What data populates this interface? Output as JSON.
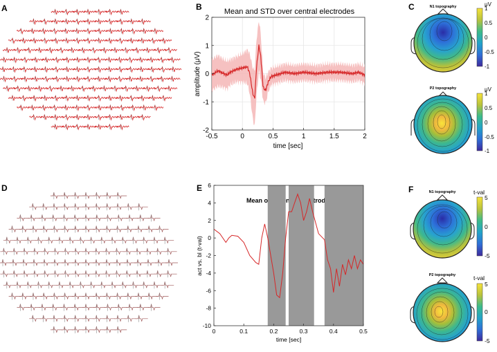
{
  "panels": {
    "A": {
      "letter": "A"
    },
    "B": {
      "letter": "B"
    },
    "C": {
      "letter": "C"
    },
    "D": {
      "letter": "D"
    },
    "E": {
      "letter": "E"
    },
    "F": {
      "letter": "F"
    }
  },
  "colors": {
    "trace": "#d62728",
    "band": "#f4b6b6",
    "sig_shade": "#999999",
    "grid": "#e6e6e6",
    "scalp_low": "#3a2fa0",
    "scalp_high": "#f5e23c"
  },
  "chart_data": [
    {
      "id": "B",
      "type": "line",
      "title": "Mean and STD over central electrodes",
      "xlabel": "time [sec]",
      "ylabel": "amplitude (μV)",
      "xlim": [
        -0.5,
        2
      ],
      "ylim": [
        -2,
        2
      ],
      "xticks": [
        -0.5,
        0,
        0.5,
        1,
        1.5,
        2
      ],
      "xtick_labels": [
        "-0.5",
        "0",
        "0.5",
        "1",
        "1.5",
        "2"
      ],
      "yticks": [
        -2,
        -1,
        0,
        1,
        2
      ],
      "ytick_labels": [
        "-2",
        "-1",
        "0",
        "1",
        "2"
      ],
      "grid": true,
      "series": [
        {
          "name": "mean",
          "x": [
            -0.5,
            -0.4,
            -0.3,
            -0.25,
            -0.2,
            -0.1,
            0,
            0.08,
            0.12,
            0.17,
            0.2,
            0.23,
            0.27,
            0.3,
            0.34,
            0.38,
            0.42,
            0.47,
            0.55,
            0.7,
            0.85,
            1.0,
            1.2,
            1.4,
            1.6,
            1.8,
            1.9,
            2.0
          ],
          "y": [
            -0.05,
            0.1,
            0.0,
            -0.05,
            0.05,
            0.15,
            0.2,
            0.25,
            0.0,
            -0.7,
            -0.9,
            0.2,
            1.0,
            0.6,
            -0.5,
            -0.6,
            -0.3,
            -0.1,
            -0.05,
            0.05,
            0.0,
            0.05,
            0.0,
            0.05,
            0.05,
            0.0,
            0.05,
            -0.05
          ]
        },
        {
          "name": "std",
          "values": [
            0.55,
            0.55,
            0.5,
            0.5,
            0.45,
            0.45,
            0.5,
            0.6,
            0.7,
            0.9,
            1.0,
            1.0,
            0.9,
            0.8,
            0.5,
            0.45,
            0.35,
            0.3,
            0.3,
            0.3,
            0.3,
            0.3,
            0.3,
            0.3,
            0.3,
            0.3,
            0.3,
            0.3
          ]
        }
      ]
    },
    {
      "id": "E",
      "type": "line",
      "title": "Mean over central electrodes",
      "xlabel": "time [sec]",
      "ylabel": "act vs. bl (t-val)",
      "xlim": [
        0,
        0.5
      ],
      "ylim": [
        -10,
        6
      ],
      "xticks": [
        0,
        0.1,
        0.2,
        0.3,
        0.4,
        0.5
      ],
      "xtick_labels": [
        "0",
        "0.1",
        "0.2",
        "0.3",
        "0.4",
        "0.5"
      ],
      "yticks": [
        -10,
        -8,
        -6,
        -4,
        -2,
        0,
        2,
        4,
        6
      ],
      "ytick_labels": [
        "-10",
        "-8",
        "-6",
        "-4",
        "-2",
        "0",
        "2",
        "4",
        "6"
      ],
      "grid": false,
      "significant_windows": [
        [
          0.18,
          0.24
        ],
        [
          0.25,
          0.335
        ],
        [
          0.37,
          0.5
        ]
      ],
      "series": [
        {
          "name": "mean",
          "x": [
            0,
            0.02,
            0.04,
            0.05,
            0.06,
            0.08,
            0.1,
            0.12,
            0.14,
            0.15,
            0.16,
            0.17,
            0.18,
            0.2,
            0.21,
            0.22,
            0.23,
            0.24,
            0.25,
            0.26,
            0.27,
            0.28,
            0.29,
            0.3,
            0.31,
            0.32,
            0.33,
            0.35,
            0.37,
            0.38,
            0.39,
            0.4,
            0.41,
            0.42,
            0.43,
            0.44,
            0.45,
            0.46,
            0.47,
            0.48,
            0.49,
            0.5
          ],
          "y": [
            1,
            0.5,
            -0.5,
            0,
            0.3,
            0.2,
            -0.5,
            -2,
            -2.8,
            -3,
            0,
            1.6,
            0,
            -4,
            -6.5,
            -6.8,
            -4,
            0,
            3,
            3,
            4,
            5,
            4,
            2,
            3,
            4.5,
            3,
            0.5,
            -0.2,
            -2.5,
            -3.5,
            -6.2,
            -3.5,
            -5.5,
            -3,
            -4.2,
            -2.5,
            -3.5,
            -2,
            -3.5,
            -2.5,
            -3
          ]
        }
      ]
    }
  ],
  "topo_C": {
    "unit_label": "μV",
    "n1_title": "N1 topography",
    "p2_title": "P2 topography",
    "colorbar_ticks": [
      "1",
      "0.5",
      "0",
      "-0.5",
      "-1"
    ]
  },
  "topo_F": {
    "unit_label": "t-val",
    "n1_title": "N1 topography",
    "p2_title": "P2 topography",
    "colorbar_ticks": [
      "5",
      "0",
      "-5"
    ]
  }
}
